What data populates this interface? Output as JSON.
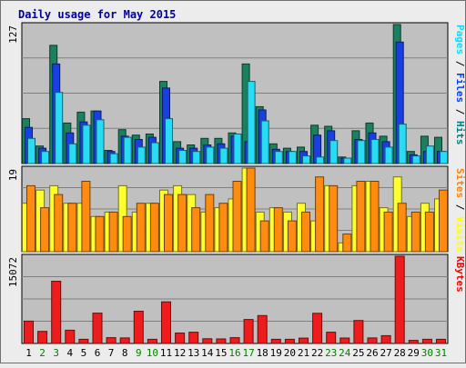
{
  "chart_data": {
    "type": "bar",
    "title": "Daily usage for May 2015",
    "categories": [
      "1",
      "2",
      "3",
      "4",
      "5",
      "6",
      "7",
      "8",
      "9",
      "10",
      "11",
      "12",
      "13",
      "14",
      "15",
      "16",
      "17",
      "18",
      "19",
      "20",
      "21",
      "22",
      "23",
      "24",
      "25",
      "26",
      "27",
      "28",
      "29",
      "30",
      "31"
    ],
    "weekend_days": [
      "2",
      "3",
      "9",
      "10",
      "16",
      "17",
      "23",
      "24",
      "30",
      "31"
    ],
    "panels": [
      {
        "name": "hits-files-pages",
        "ymax_label": "127",
        "ylim": [
          0,
          127
        ],
        "legend": [
          {
            "label": "Pages",
            "color": "#00e0ff"
          },
          {
            "label": "Files",
            "color": "#0040ff"
          },
          {
            "label": "Hits",
            "color": "#008080"
          }
        ],
        "series": [
          {
            "name": "Hits",
            "color": "#1a8060",
            "values": [
              41,
              16,
              108,
              37,
              47,
              48,
              12,
              31,
              26,
              27,
              75,
              20,
              17,
              23,
              23,
              28,
              91,
              52,
              18,
              14,
              15,
              35,
              34,
              6,
              30,
              37,
              25,
              127,
              11,
              25,
              24
            ]
          },
          {
            "name": "Files",
            "color": "#1a3fe0",
            "values": [
              33,
              14,
              91,
              28,
              38,
              48,
              11,
              25,
              22,
              24,
              69,
              14,
              14,
              17,
              18,
              25,
              20,
              49,
              13,
              11,
              11,
              26,
              30,
              5,
              22,
              28,
              20,
              111,
              8,
              11,
              11
            ]
          },
          {
            "name": "Pages",
            "color": "#28dcf5",
            "values": [
              23,
              11,
              65,
              18,
              35,
              40,
              9,
              24,
              15,
              19,
              41,
              12,
              11,
              15,
              14,
              27,
              75,
              39,
              11,
              11,
              7,
              6,
              21,
              5,
              21,
              22,
              15,
              36,
              7,
              16,
              11
            ]
          }
        ]
      },
      {
        "name": "sites-visits",
        "ymax_label": "19",
        "ylim": [
          0,
          19
        ],
        "legend": [
          {
            "label": "Sites",
            "color": "#ff8000"
          },
          {
            "label": "Visits",
            "color": "#ffff00"
          }
        ],
        "series": [
          {
            "name": "Visits",
            "color": "#ffff30",
            "values": [
              11,
              14,
              15,
              11,
              11,
              8,
              9,
              15,
              9,
              11,
              14,
              15,
              13,
              9,
              10,
              12,
              19,
              9,
              10,
              9,
              11,
              7,
              15,
              2,
              15,
              16,
              10,
              17,
              8,
              11,
              12
            ]
          },
          {
            "name": "Sites",
            "color": "#ff8c10",
            "values": [
              15,
              10,
              13,
              11,
              16,
              8,
              9,
              8,
              11,
              11,
              13,
              13,
              10,
              13,
              11,
              16,
              19,
              7,
              10,
              7,
              9,
              17,
              15,
              4,
              16,
              16,
              9,
              11,
              9,
              9,
              14
            ]
          }
        ]
      },
      {
        "name": "kbytes",
        "ymax_label": "15072",
        "ylim": [
          0,
          15072
        ],
        "legend": [
          {
            "label": "KBytes",
            "color": "#ff0000"
          }
        ],
        "series": [
          {
            "name": "KBytes",
            "color": "#ee1c1c",
            "values": [
              3860,
              2090,
              10750,
              2290,
              720,
              5240,
              1010,
              960,
              5580,
              720,
              7190,
              1800,
              1950,
              810,
              780,
              1000,
              4140,
              4820,
              720,
              720,
              920,
              5210,
              1950,
              940,
              3970,
              960,
              1350,
              15072,
              530,
              720,
              720
            ]
          }
        ]
      }
    ]
  }
}
